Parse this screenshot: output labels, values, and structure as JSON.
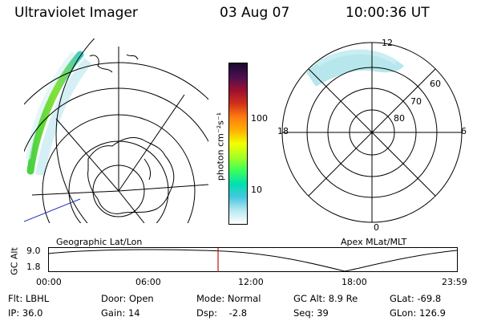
{
  "header": {
    "instrument": "Ultraviolet Imager",
    "date": "03 Aug 07",
    "time": "10:00:36 UT"
  },
  "geo_panel": {
    "label": "Geographic Lat/Lon"
  },
  "apex_panel": {
    "label": "Apex MLat/MLT",
    "mlt_labels": {
      "top": "12",
      "left": "18",
      "right": "6",
      "bottom": "0"
    },
    "lat_labels": [
      "60",
      "70",
      "80"
    ]
  },
  "colorbar": {
    "unit_label": "photon cm⁻²s⁻¹",
    "tick_labels": [
      "100",
      "10"
    ],
    "colors_top_to_bottom": [
      "#1a0a2e",
      "#4b0f50",
      "#9a1030",
      "#d0301a",
      "#ff7a10",
      "#ffb000",
      "#f3ff00",
      "#a8ff22",
      "#3cff5a",
      "#00e0b0",
      "#44c8e0",
      "#b8e8f2",
      "#ffffff"
    ]
  },
  "altitude_plot": {
    "ylabel": "GC Alt",
    "y_ticks": [
      "9.0",
      "1.8"
    ],
    "x_ticks": [
      "00:00",
      "06:00",
      "12:00",
      "18:00",
      "23:59"
    ],
    "current_time_marker_color": "#c01010"
  },
  "status": {
    "filter": "Flt: LBHL",
    "ip": "IP: 36.0",
    "door": "Door: Open",
    "gain": "Gain: 14",
    "mode": "Mode: Normal",
    "dsp": "Dsp:    -2.8",
    "gc_alt": "GC Alt: 8.9 Re",
    "seq": "Seq: 39",
    "glat": "GLat: -69.8",
    "glon": "GLon: 126.9"
  }
}
